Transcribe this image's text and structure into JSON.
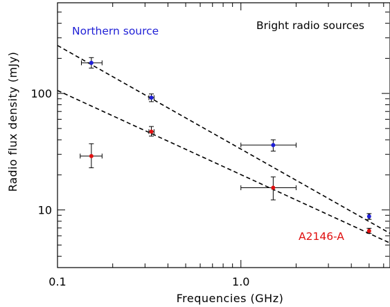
{
  "chart_data": {
    "type": "scatter",
    "title": "",
    "xlabel": "Frequencies (GHz)",
    "ylabel": "Radio flux density (mJy)",
    "xscale": "log",
    "yscale": "log",
    "xlim": [
      0.1,
      6.5
    ],
    "ylim": [
      3.2,
      600
    ],
    "x_ticks": [
      {
        "value": 0.1,
        "label": "0.1"
      },
      {
        "value": 1.0,
        "label": "1.0"
      }
    ],
    "y_ticks": [
      {
        "value": 10,
        "label": "10"
      },
      {
        "value": 100,
        "label": "100"
      }
    ],
    "grid": false,
    "annotations": [
      {
        "text": "Bright radio sources",
        "position": "top-right",
        "color": "#000000"
      },
      {
        "text": "Northern source",
        "position": "top-left",
        "color": "#1f1fd6"
      },
      {
        "text": "A2146-A",
        "position": "bottom-right",
        "color": "#e01010"
      }
    ],
    "series": [
      {
        "color": "#1f1fd6",
        "points": [
          {
            "x": 0.153,
            "y": 183,
            "xerr": [
              0.135,
              0.175
            ],
            "yerr": [
              165,
              203
            ]
          },
          {
            "x": 0.325,
            "y": 92,
            "xerr": [
              0.315,
              0.336
            ],
            "yerr": [
              85,
              99
            ]
          },
          {
            "x": 1.5,
            "y": 36,
            "xerr": [
              1.0,
              2.0
            ],
            "yerr": [
              32,
              40
            ]
          },
          {
            "x": 5.0,
            "y": 8.8,
            "xerr": [
              4.96,
              5.04
            ],
            "yerr": [
              8.3,
              9.3
            ]
          }
        ],
        "fit": {
          "x": [
            0.1,
            6.5
          ],
          "y": [
            258,
            6.3
          ]
        }
      },
      {
        "color": "#e01010",
        "points": [
          {
            "x": 0.153,
            "y": 29,
            "xerr": [
              0.133,
              0.175
            ],
            "yerr": [
              23,
              37
            ]
          },
          {
            "x": 0.325,
            "y": 47,
            "xerr": [
              0.315,
              0.336
            ],
            "yerr": [
              43,
              52
            ]
          },
          {
            "x": 1.5,
            "y": 15.5,
            "xerr": [
              1.0,
              2.0
            ],
            "yerr": [
              12.2,
              19.2
            ]
          },
          {
            "x": 5.0,
            "y": 6.6,
            "xerr": [
              4.96,
              5.04
            ],
            "yerr": [
              6.3,
              6.95
            ]
          }
        ],
        "fit": {
          "x": [
            0.1,
            6.5
          ],
          "y": [
            106,
            5.2
          ]
        }
      }
    ]
  }
}
